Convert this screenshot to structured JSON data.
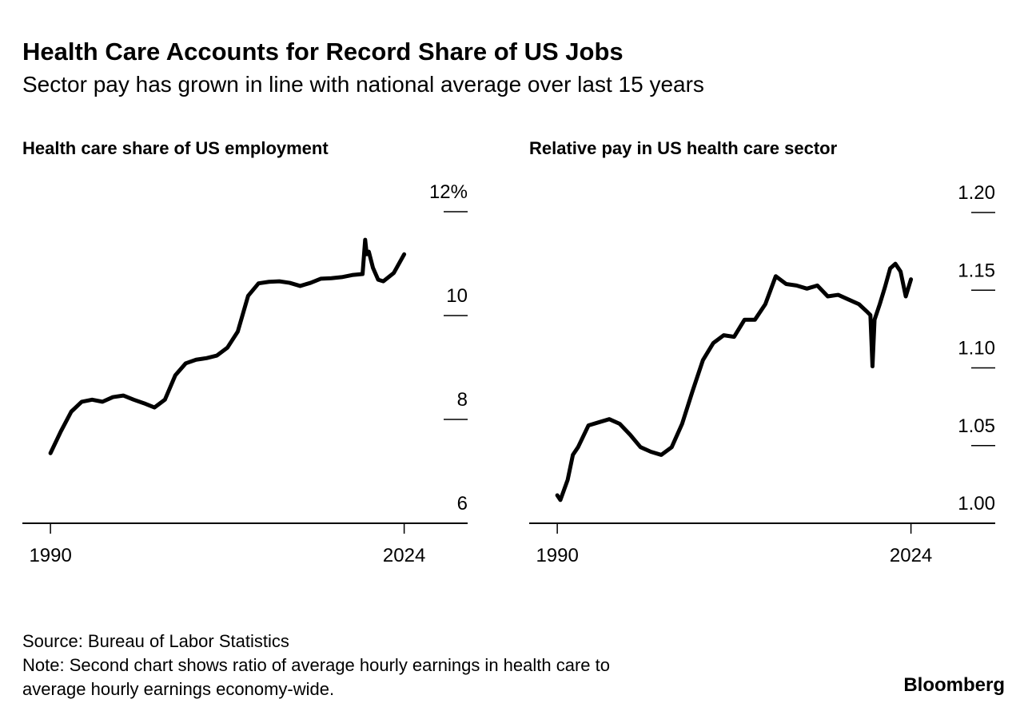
{
  "title": "Health Care Accounts for Record Share of US Jobs",
  "subtitle": "Sector pay has grown in line with national average over last 15 years",
  "source": "Source: Bureau of Labor Statistics",
  "note": [
    "Note: Second chart shows ratio of average hourly earnings in health care to",
    "average hourly earnings economy-wide."
  ],
  "logo": "Bloomberg",
  "chart_data": [
    {
      "type": "line",
      "title": "Health care share of US employment",
      "x": [
        1990,
        1991,
        1992,
        1993,
        1994,
        1995,
        1996,
        1997,
        1998,
        1999,
        2000,
        2001,
        2002,
        2003,
        2004,
        2005,
        2006,
        2007,
        2008,
        2009,
        2010,
        2011,
        2012,
        2013,
        2014,
        2015,
        2016,
        2017,
        2018,
        2019,
        2020,
        2020.25,
        2020.4,
        2020.6,
        2021,
        2021.5,
        2022,
        2023,
        2024
      ],
      "series": [
        {
          "name": "Health care share of US employment",
          "color": "#000000",
          "values": [
            7.35,
            7.77,
            8.15,
            8.34,
            8.38,
            8.34,
            8.43,
            8.46,
            8.38,
            8.31,
            8.23,
            8.38,
            8.85,
            9.08,
            9.15,
            9.18,
            9.23,
            9.38,
            9.69,
            10.38,
            10.62,
            10.65,
            10.66,
            10.63,
            10.57,
            10.63,
            10.71,
            10.72,
            10.74,
            10.78,
            10.8,
            11.46,
            11.18,
            11.23,
            10.92,
            10.69,
            10.66,
            10.82,
            11.18
          ]
        }
      ],
      "xlim": [
        1987.3,
        2030.1
      ],
      "xticks": [
        1990,
        2024
      ],
      "ylim": [
        6,
        12
      ],
      "yticks": [
        6,
        8,
        10,
        {
          "value": 12,
          "label": "12%"
        }
      ]
    },
    {
      "type": "line",
      "title": "Relative pay in US health care sector",
      "x": [
        1990,
        1990.3,
        1991,
        1991.5,
        1992,
        1993,
        1994,
        1995,
        1996,
        1997,
        1998,
        1999,
        2000,
        2001,
        2002,
        2003,
        2004,
        2005,
        2006,
        2007,
        2008,
        2009,
        2010,
        2011,
        2012,
        2013,
        2014,
        2015,
        2016,
        2017,
        2018,
        2019,
        2019.8,
        2020.1,
        2020.3,
        2020.5,
        2021,
        2021.5,
        2022,
        2022.5,
        2023,
        2023.5,
        2024
      ],
      "series": [
        {
          "name": "Relative pay in US health care sector",
          "color": "#000000",
          "values": [
            1.018,
            1.015,
            1.028,
            1.044,
            1.049,
            1.063,
            1.065,
            1.067,
            1.064,
            1.057,
            1.049,
            1.046,
            1.044,
            1.049,
            1.064,
            1.085,
            1.105,
            1.116,
            1.121,
            1.12,
            1.131,
            1.131,
            1.141,
            1.159,
            1.154,
            1.153,
            1.151,
            1.153,
            1.146,
            1.147,
            1.144,
            1.141,
            1.136,
            1.134,
            1.101,
            1.131,
            1.141,
            1.152,
            1.164,
            1.167,
            1.162,
            1.146,
            1.157
          ]
        }
      ],
      "xlim": [
        1987.3,
        2032.1
      ],
      "xticks": [
        1990,
        2024
      ],
      "ylim": [
        1.0,
        1.2
      ],
      "yticks": [
        {
          "value": 1.0,
          "label": "1.00"
        },
        1.05,
        {
          "value": 1.1,
          "label": "1.10"
        },
        1.15,
        {
          "value": 1.2,
          "label": "1.20"
        }
      ]
    }
  ]
}
